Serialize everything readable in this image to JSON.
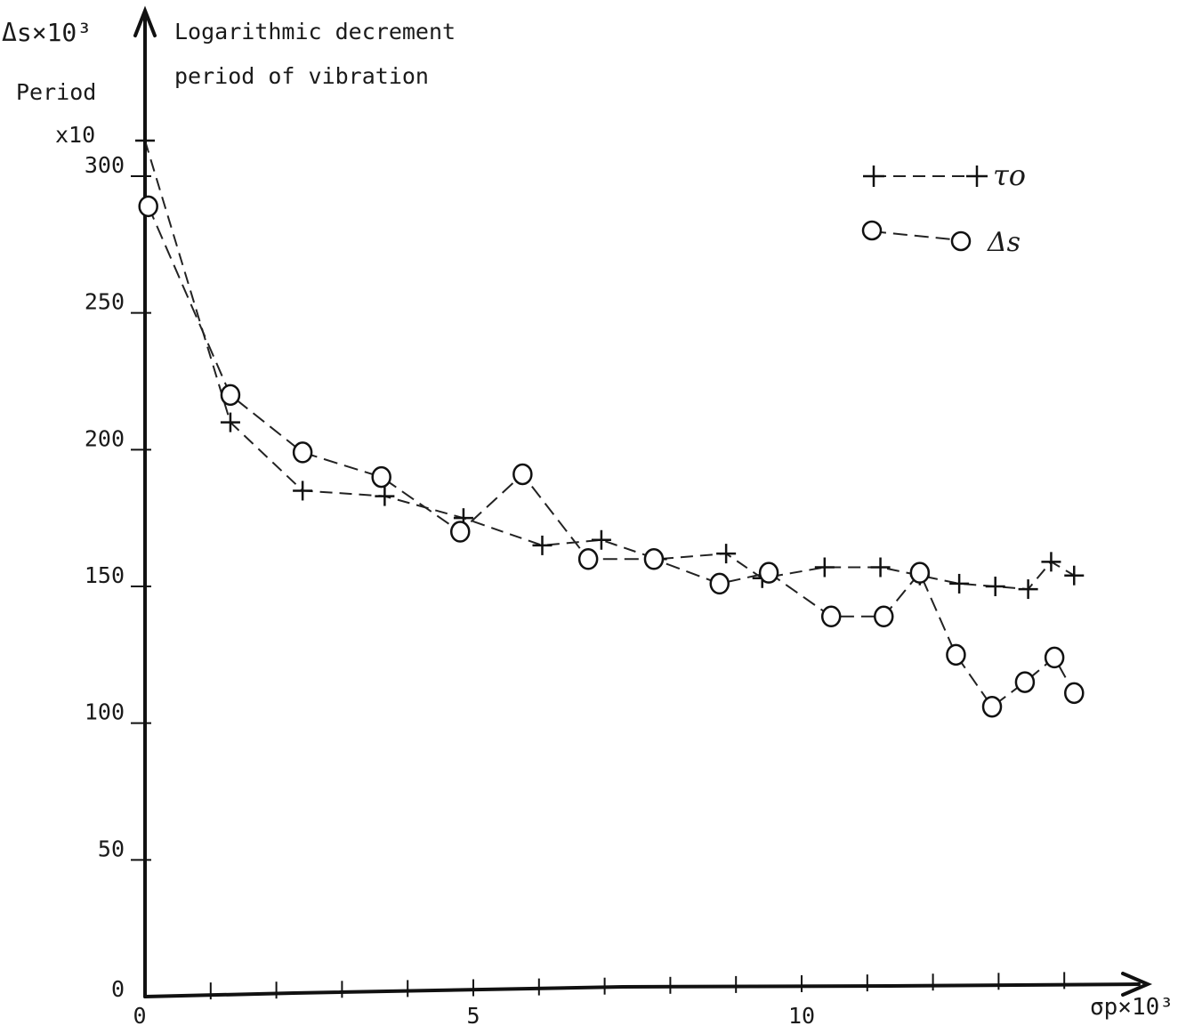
{
  "chart_data": {
    "type": "line",
    "y_axis_label_lines": [
      "Δs×10³",
      "Period",
      "x10"
    ],
    "title_lines": [
      "Logarithmic decrement",
      "period of vibration"
    ],
    "x_axis_label": "σp×10³",
    "x_ticks": [
      0,
      5,
      10
    ],
    "y_ticks": [
      0,
      50,
      100,
      150,
      200,
      250,
      300
    ],
    "xlim": [
      0,
      15
    ],
    "ylim": [
      0,
      330
    ],
    "grid": false,
    "legend_position": "top-right",
    "series": [
      {
        "name": "τo",
        "marker": "plus",
        "x": [
          0,
          1.3,
          2.4,
          3.65,
          4.85,
          6.05,
          6.95,
          7.8,
          8.85,
          9.4,
          10.35,
          11.2,
          11.8,
          12.4,
          12.95,
          13.45,
          13.8,
          14.15
        ],
        "y": [
          313,
          210,
          185,
          183,
          175,
          165,
          167,
          160,
          162,
          153,
          157,
          157,
          154,
          151,
          150,
          149,
          159,
          154
        ]
      },
      {
        "name": "Δs",
        "marker": "circle",
        "x": [
          0.05,
          1.3,
          2.4,
          3.6,
          4.8,
          5.75,
          6.75,
          7.75,
          8.75,
          9.5,
          10.45,
          11.25,
          11.8,
          12.35,
          12.9,
          13.4,
          13.85,
          14.15
        ],
        "y": [
          289,
          220,
          199,
          190,
          170,
          191,
          160,
          160,
          151,
          155,
          139,
          139,
          155,
          125,
          106,
          115,
          124,
          111
        ]
      }
    ]
  }
}
